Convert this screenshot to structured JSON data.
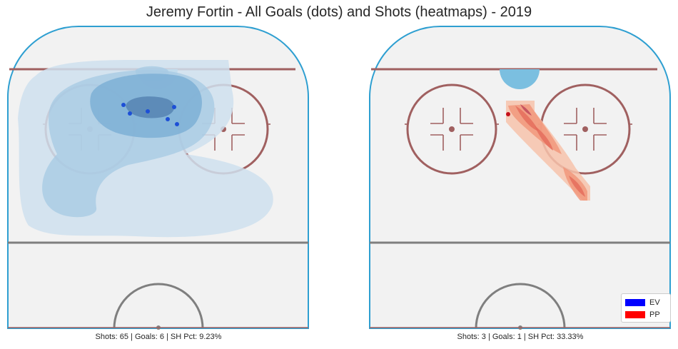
{
  "title": "Jeremy Fortin - All Goals (dots) and Shots (heatmaps) - 2019",
  "colors": {
    "ice": "#f2f2f2",
    "boards": "#2e9fd1",
    "red_line": "#a06060",
    "blue_line": "#7f7f7f",
    "crease": "#7bbfe0",
    "ev": "#0000ff",
    "pp": "#ff0000"
  },
  "chart_data": [
    {
      "type": "scatter",
      "panel": "EV",
      "caption": "Shots: 65 | Goals: 6 | SH Pct: 9.23%",
      "heatmap_colors": [
        "#cfe0ef",
        "#a8cbe3",
        "#7aaed4",
        "#5684b3"
      ],
      "goals": [
        {
          "x": 163,
          "y": 111
        },
        {
          "x": 172,
          "y": 123
        },
        {
          "x": 197,
          "y": 120
        },
        {
          "x": 234,
          "y": 114
        },
        {
          "x": 225,
          "y": 131
        },
        {
          "x": 238,
          "y": 138
        }
      ]
    },
    {
      "type": "scatter",
      "panel": "PP",
      "caption": "Shots: 3 | Goals: 1 | SH Pct: 33.33%",
      "heatmap_colors": [
        "#f7c3ac",
        "#f19478",
        "#e36a5a",
        "#c0485a"
      ],
      "goals": [
        {
          "x": 195,
          "y": 124
        }
      ]
    }
  ],
  "legend": [
    {
      "label": "EV",
      "color": "#0000ff"
    },
    {
      "label": "PP",
      "color": "#ff0000"
    }
  ]
}
